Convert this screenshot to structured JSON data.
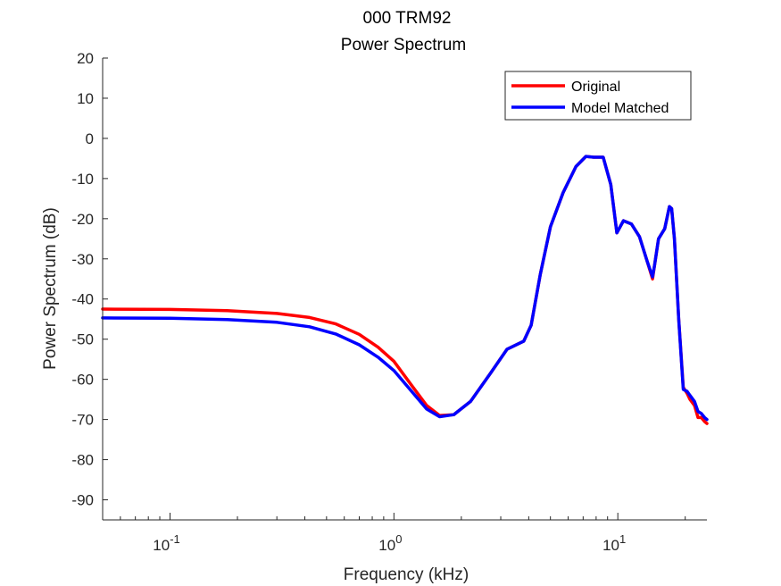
{
  "chart_data": {
    "type": "line",
    "title": "000 TRM92",
    "subtitle": "Power Spectrum",
    "xlabel": "Frequency (kHz)",
    "ylabel": "Power Spectrum (dB)",
    "xscale": "log",
    "xlim": [
      0.05,
      25
    ],
    "ylim": [
      -95,
      20
    ],
    "yticks": [
      20,
      10,
      0,
      -10,
      -20,
      -30,
      -40,
      -50,
      -60,
      -70,
      -80,
      -90
    ],
    "xticks": [
      {
        "value": 0.1,
        "base": "10",
        "exp": "-1"
      },
      {
        "value": 1,
        "base": "10",
        "exp": "0"
      },
      {
        "value": 10,
        "base": "10",
        "exp": "1"
      }
    ],
    "grid": false,
    "legend_position": "top-right",
    "series": [
      {
        "name": "Original",
        "color": "#ff0000",
        "x": [
          0.05,
          0.1,
          0.18,
          0.3,
          0.42,
          0.55,
          0.7,
          0.85,
          1.0,
          1.2,
          1.4,
          1.6,
          1.85,
          2.2,
          2.7,
          3.2,
          3.8,
          4.1,
          4.5,
          5.0,
          5.7,
          6.5,
          7.2,
          7.8,
          8.6,
          9.3,
          9.9,
          10.6,
          11.5,
          12.5,
          13.5,
          14.3,
          14.6,
          15.2,
          16.2,
          17.0,
          17.4,
          17.9,
          18.7,
          19.6,
          20.4,
          21.0,
          22.0,
          22.8,
          23.6,
          24.4,
          25.0
        ],
        "y": [
          -42.5,
          -42.6,
          -42.9,
          -43.6,
          -44.6,
          -46.2,
          -48.8,
          -52.0,
          -55.5,
          -61.5,
          -66.5,
          -69.0,
          -68.8,
          -65.5,
          -58.5,
          -52.5,
          -50.5,
          -46.5,
          -34.0,
          -22.0,
          -13.5,
          -7.0,
          -4.5,
          -4.7,
          -4.7,
          -11.5,
          -23.5,
          -20.5,
          -21.3,
          -24.5,
          -30.5,
          -35.0,
          -31.5,
          -25.0,
          -22.5,
          -17.0,
          -17.5,
          -25.0,
          -45.0,
          -62.0,
          -63.5,
          -65.0,
          -66.5,
          -69.5,
          -69.5,
          -70.5,
          -71.0
        ]
      },
      {
        "name": "Model Matched",
        "color": "#0000ff",
        "x": [
          0.05,
          0.1,
          0.18,
          0.3,
          0.42,
          0.55,
          0.7,
          0.85,
          1.0,
          1.2,
          1.4,
          1.6,
          1.85,
          2.2,
          2.7,
          3.2,
          3.8,
          4.1,
          4.5,
          5.0,
          5.7,
          6.5,
          7.2,
          7.8,
          8.6,
          9.3,
          9.9,
          10.6,
          11.5,
          12.5,
          13.5,
          14.3,
          14.6,
          15.2,
          16.2,
          17.0,
          17.4,
          17.9,
          18.7,
          19.6,
          20.4,
          21.0,
          22.0,
          22.8,
          23.6,
          24.4,
          25.0
        ],
        "y": [
          -44.7,
          -44.8,
          -45.1,
          -45.8,
          -46.9,
          -48.7,
          -51.4,
          -54.5,
          -57.8,
          -63.0,
          -67.4,
          -69.3,
          -68.8,
          -65.5,
          -58.5,
          -52.5,
          -50.5,
          -46.5,
          -34.0,
          -22.0,
          -13.5,
          -7.0,
          -4.5,
          -4.7,
          -4.7,
          -11.5,
          -23.5,
          -20.5,
          -21.3,
          -24.5,
          -30.5,
          -34.5,
          -31.5,
          -25.0,
          -22.5,
          -17.0,
          -17.5,
          -25.0,
          -45.0,
          -62.5,
          -63.0,
          -64.0,
          -65.5,
          -68.0,
          -68.5,
          -69.5,
          -70.0
        ]
      }
    ]
  }
}
